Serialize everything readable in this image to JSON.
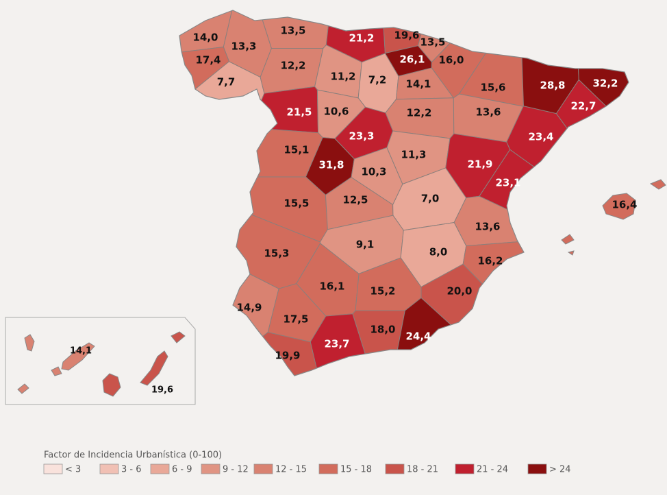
{
  "title": "Factor de Incidencia Urbanística (0-100)",
  "legend": [
    {
      "label": "< 3",
      "color": "#f9e2dc"
    },
    {
      "label": "3 - 6",
      "color": "#f1c0b4"
    },
    {
      "label": "6 - 9",
      "color": "#e9a898"
    },
    {
      "label": "9 - 12",
      "color": "#e09483"
    },
    {
      "label": "12 - 15",
      "color": "#d98271"
    },
    {
      "label": "15 - 18",
      "color": "#d26c5c"
    },
    {
      "label": "18 - 21",
      "color": "#c9544b"
    },
    {
      "label": "21 - 24",
      "color": "#c0202f"
    },
    {
      "label": "> 24",
      "color": "#8a0f0f"
    }
  ],
  "provinces": [
    {
      "label": "14,0",
      "color": "#d98271"
    },
    {
      "label": "13,3",
      "color": "#d98271"
    },
    {
      "label": "17,4",
      "color": "#d26c5c"
    },
    {
      "label": "7,7",
      "color": "#e9a898"
    },
    {
      "label": "13,5",
      "color": "#d98271"
    },
    {
      "label": "21,2",
      "color": "#c0202f"
    },
    {
      "label": "19,6",
      "color": "#c9544b"
    },
    {
      "label": "13,5",
      "color": "#d98271"
    },
    {
      "label": "26,1",
      "color": "#8a0f0f"
    },
    {
      "label": "16,0",
      "color": "#d26c5c"
    },
    {
      "label": "12,2",
      "color": "#d98271"
    },
    {
      "label": "11,2",
      "color": "#e09483"
    },
    {
      "label": "7,2",
      "color": "#e9a898"
    },
    {
      "label": "14,1",
      "color": "#d98271"
    },
    {
      "label": "15,6",
      "color": "#d26c5c"
    },
    {
      "label": "28,8",
      "color": "#8a0f0f"
    },
    {
      "label": "32,2",
      "color": "#8a0f0f"
    },
    {
      "label": "22,7",
      "color": "#c0202f"
    },
    {
      "label": "21,5",
      "color": "#c0202f"
    },
    {
      "label": "10,6",
      "color": "#e09483"
    },
    {
      "label": "12,2",
      "color": "#d98271"
    },
    {
      "label": "13,6",
      "color": "#d98271"
    },
    {
      "label": "23,4",
      "color": "#c0202f"
    },
    {
      "label": "15,1",
      "color": "#d26c5c"
    },
    {
      "label": "23,3",
      "color": "#c0202f"
    },
    {
      "label": "31,8",
      "color": "#8a0f0f"
    },
    {
      "label": "10,3",
      "color": "#e09483"
    },
    {
      "label": "11,3",
      "color": "#e09483"
    },
    {
      "label": "21,9",
      "color": "#c0202f"
    },
    {
      "label": "23,1",
      "color": "#c0202f"
    },
    {
      "label": "15,5",
      "color": "#d26c5c"
    },
    {
      "label": "12,5",
      "color": "#d98271"
    },
    {
      "label": "7,0",
      "color": "#e9a898"
    },
    {
      "label": "13,6",
      "color": "#d98271"
    },
    {
      "label": "15,3",
      "color": "#d26c5c"
    },
    {
      "label": "9,1",
      "color": "#e09483"
    },
    {
      "label": "8,0",
      "color": "#e9a898"
    },
    {
      "label": "16,2",
      "color": "#d26c5c"
    },
    {
      "label": "14,9",
      "color": "#d98271"
    },
    {
      "label": "16,1",
      "color": "#d26c5c"
    },
    {
      "label": "15,2",
      "color": "#d26c5c"
    },
    {
      "label": "20,0",
      "color": "#c9544b"
    },
    {
      "label": "17,5",
      "color": "#d26c5c"
    },
    {
      "label": "18,0",
      "color": "#c9544b"
    },
    {
      "label": "24,4",
      "color": "#8a0f0f"
    },
    {
      "label": "23,7",
      "color": "#c0202f"
    },
    {
      "label": "19,9",
      "color": "#c9544b"
    },
    {
      "label": "16,4",
      "color": "#d26c5c"
    },
    {
      "label": "14,1",
      "color": "#d98271"
    },
    {
      "label": "19,6",
      "color": "#c9544b"
    }
  ]
}
